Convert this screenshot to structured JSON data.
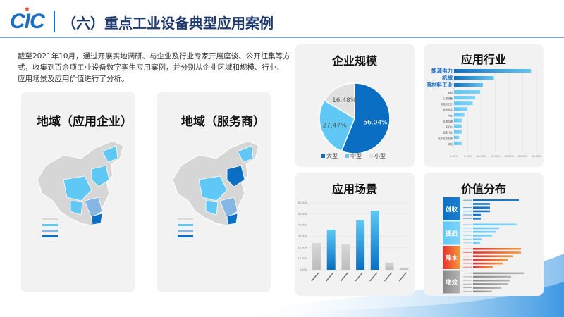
{
  "header": {
    "logo": "CIC",
    "title": "（六）重点工业设备典型应用案例"
  },
  "intro": "截至2021年10月，通过开展实地调研、与企业及行业专家开展座谈、公开征集等方式，收集到百余项工业设备数字孪生应用案例，并分别从企业区域和规模、行业、应用场景及应用价值进行了分析。",
  "maps": [
    {
      "title": "地域（应用企业）"
    },
    {
      "title": "地域（服务商）"
    }
  ],
  "colors": {
    "dark_blue": "#0a6fc2",
    "light_blue": "#5fc8f5",
    "mid_blue": "#86b6e3",
    "gray": "#d9d9d9",
    "red": "#e8302e",
    "orange": "#f59a3a",
    "title": "#1f3a6e"
  },
  "chart_data": [
    {
      "type": "pie",
      "title": "企业规模",
      "categories": [
        "大型",
        "中型",
        "小型"
      ],
      "values": [
        56.04,
        27.47,
        16.48
      ],
      "labels": [
        "56.04%",
        "27.47%",
        "16.48%"
      ],
      "legend": "bottom"
    },
    {
      "type": "bar",
      "orientation": "horizontal",
      "title": "应用行业",
      "categories": [
        "能源电力",
        "机械",
        "原材料工业",
        "船舶",
        "工程装备",
        "消费品工业",
        "航空航天",
        "汽车",
        "轨道交通",
        "采矿业",
        "烟草行业",
        "电子信息制造",
        "其他"
      ],
      "values": [
        28.0,
        14.5,
        10.5,
        9.5,
        7.7,
        6.8,
        4.8,
        3.8,
        2.8,
        2.8,
        2.8,
        1.9,
        2.8
      ],
      "xlim": [
        0,
        30
      ],
      "xticks": [
        "0.00%",
        "5.00%",
        "10.00%",
        "15.00%",
        "20.00%",
        "25.00%",
        "30.00%"
      ],
      "highlighted": 3
    },
    {
      "type": "bar",
      "title": "应用场景",
      "values": [
        24,
        36,
        23,
        44.5,
        53,
        6.5,
        2
      ],
      "highlight": [
        false,
        true,
        false,
        true,
        true,
        false,
        false
      ],
      "ylim": [
        0,
        60
      ],
      "yticks": [
        "0.00%",
        "10.00%",
        "20.00%",
        "30.00%",
        "40.00%",
        "50.00%",
        "60.00%"
      ]
    },
    {
      "type": "bar",
      "orientation": "horizontal",
      "title": "价值分布",
      "groups": [
        {
          "name": "创收",
          "values": [
            65,
            24,
            24,
            24,
            11,
            11
          ]
        },
        {
          "name": "提质",
          "values": [
            62,
            37,
            33,
            27,
            12,
            10
          ]
        },
        {
          "name": "降本",
          "values": [
            68,
            68,
            56,
            49,
            42,
            28
          ]
        },
        {
          "name": "增效",
          "values": [
            72,
            54,
            52,
            50,
            40,
            27
          ]
        }
      ]
    }
  ]
}
